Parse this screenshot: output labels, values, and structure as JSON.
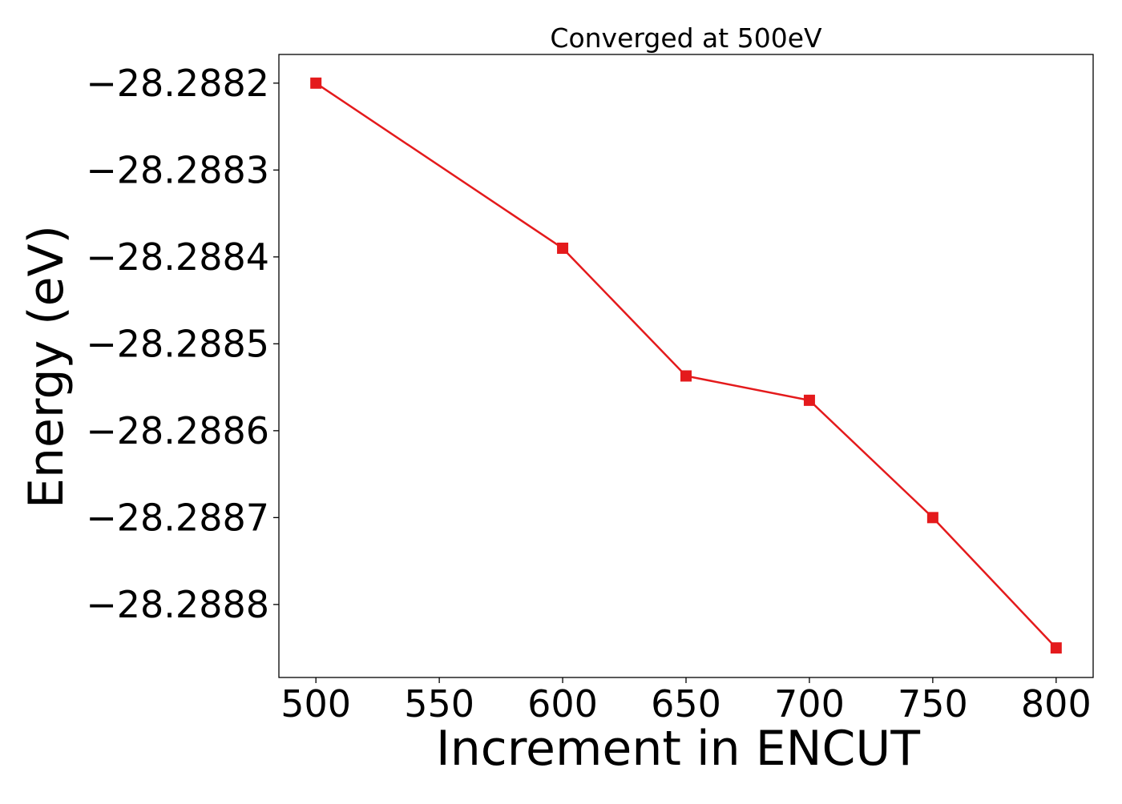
{
  "chart_data": {
    "type": "line",
    "title": "Converged at 500eV",
    "xlabel": "Increment in ENCUT",
    "ylabel": "Energy (eV)",
    "x": [
      500,
      600,
      650,
      700,
      750,
      800
    ],
    "series": [
      {
        "values": [
          -28.2882,
          -28.28839,
          -28.288537,
          -28.288565,
          -28.2887,
          -28.28885
        ],
        "color": "#e41a1c",
        "marker": "square"
      }
    ],
    "xticks": [
      500,
      550,
      600,
      650,
      700,
      750,
      800
    ],
    "xtick_labels": [
      "500",
      "550",
      "600",
      "650",
      "700",
      "750",
      "800"
    ],
    "yticks": [
      -28.2882,
      -28.2883,
      -28.2884,
      -28.2885,
      -28.2886,
      -28.2887,
      -28.2888
    ],
    "ytick_labels": [
      "−28.2882",
      "−28.2883",
      "−28.2884",
      "−28.2885",
      "−28.2886",
      "−28.2887",
      "−28.2888"
    ],
    "xlim": [
      485,
      815
    ],
    "ylim": [
      -28.288884,
      -28.288167
    ],
    "grid": false,
    "legend": false
  }
}
